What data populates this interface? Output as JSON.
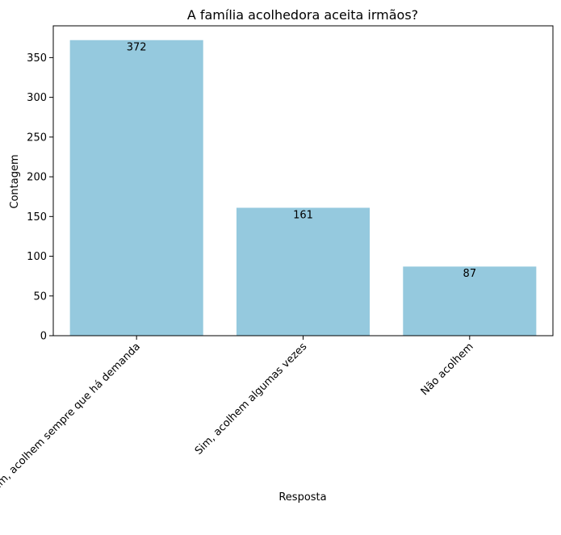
{
  "chart_data": {
    "type": "bar",
    "title": "A família acolhedora aceita irmãos?",
    "xlabel": "Resposta",
    "ylabel": "Contagem",
    "categories": [
      "Sim, acolhem sempre que há demanda",
      "Sim, acolhem algumas vezes",
      "Não acolhem"
    ],
    "values": [
      372,
      161,
      87
    ],
    "data_labels": [
      "372",
      "161",
      "87"
    ],
    "ylim": [
      0,
      390
    ],
    "yticks": [
      0,
      50,
      100,
      150,
      200,
      250,
      300,
      350
    ],
    "grid": false,
    "legend": "none",
    "bar_color": "#95c9de",
    "axis_color": "#000000"
  }
}
